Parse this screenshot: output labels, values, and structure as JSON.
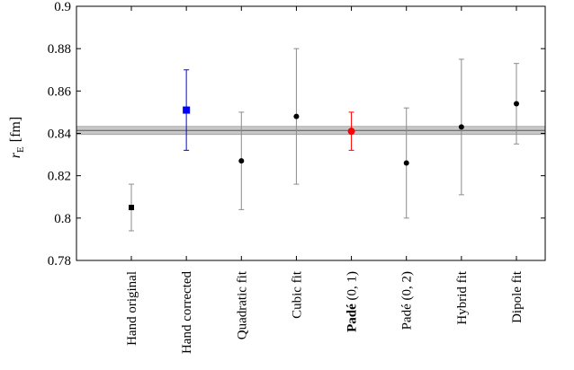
{
  "chart_data": {
    "type": "scatter",
    "title": "",
    "xlabel": "",
    "ylabel": {
      "symbol": "r",
      "subscript": "E",
      "unit": "[fm]"
    },
    "ylim": [
      0.78,
      0.9
    ],
    "yticks": [
      {
        "value": 0.78,
        "label": "0.78"
      },
      {
        "value": 0.8,
        "label": "0.8"
      },
      {
        "value": 0.82,
        "label": "0.82"
      },
      {
        "value": 0.84,
        "label": "0.84"
      },
      {
        "value": 0.86,
        "label": "0.86"
      },
      {
        "value": 0.88,
        "label": "0.88"
      },
      {
        "value": 0.9,
        "label": "0.9"
      }
    ],
    "grid": false,
    "reference_band": {
      "center": 0.8414,
      "lower": 0.8395,
      "upper": 0.8433
    },
    "points": [
      {
        "label": "Hand original",
        "bold": "",
        "rest": "Hand original",
        "value": 0.805,
        "err_low": 0.794,
        "err_high": 0.816,
        "color": "#000000",
        "marker": "square"
      },
      {
        "label": "Hand corrected",
        "bold": "",
        "rest": "Hand corrected",
        "value": 0.851,
        "err_low": 0.832,
        "err_high": 0.87,
        "color": "#0000ff",
        "marker": "square"
      },
      {
        "label": "Quadratic fit",
        "bold": "",
        "rest": "Quadratic fit",
        "value": 0.827,
        "err_low": 0.804,
        "err_high": 0.85,
        "color": "#000000",
        "marker": "circle"
      },
      {
        "label": "Cubic fit",
        "bold": "",
        "rest": "Cubic fit",
        "value": 0.848,
        "err_low": 0.816,
        "err_high": 0.88,
        "color": "#000000",
        "marker": "circle"
      },
      {
        "label": "Padé (0,1)",
        "bold": "Padé",
        "rest": " (0, 1)",
        "value": 0.841,
        "err_low": 0.832,
        "err_high": 0.85,
        "color": "#ff0000",
        "marker": "circle"
      },
      {
        "label": "Padé (0,2)",
        "bold": "",
        "rest": "Padé (0, 2)",
        "value": 0.826,
        "err_low": 0.8,
        "err_high": 0.852,
        "color": "#000000",
        "marker": "circle"
      },
      {
        "label": "Hybrid fit",
        "bold": "",
        "rest": "Hybrid fit",
        "value": 0.843,
        "err_low": 0.811,
        "err_high": 0.875,
        "color": "#000000",
        "marker": "circle"
      },
      {
        "label": "Dipole fit",
        "bold": "",
        "rest": "Dipole fit",
        "value": 0.854,
        "err_low": 0.835,
        "err_high": 0.873,
        "color": "#000000",
        "marker": "circle"
      }
    ]
  }
}
